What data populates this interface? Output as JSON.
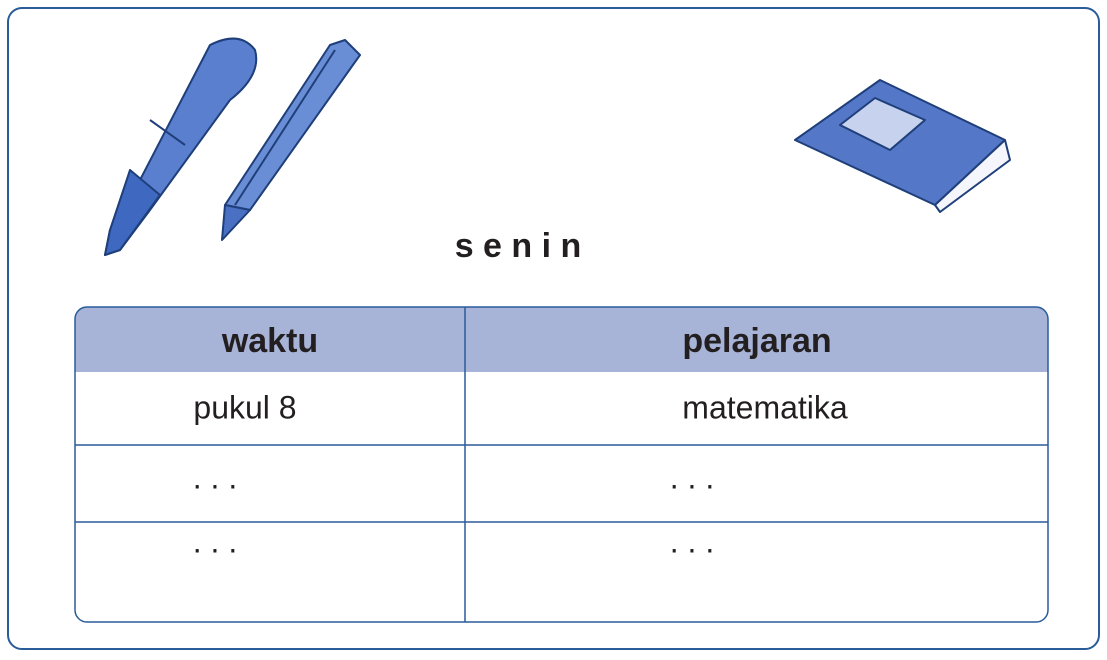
{
  "title": "s e n i n",
  "table": {
    "header": [
      "waktu",
      "pelajaran"
    ],
    "rows": [
      [
        "pukul 8",
        "matematika"
      ],
      [
        ". . .",
        ". . ."
      ],
      [
        ". . .",
        ". . ."
      ]
    ]
  }
}
